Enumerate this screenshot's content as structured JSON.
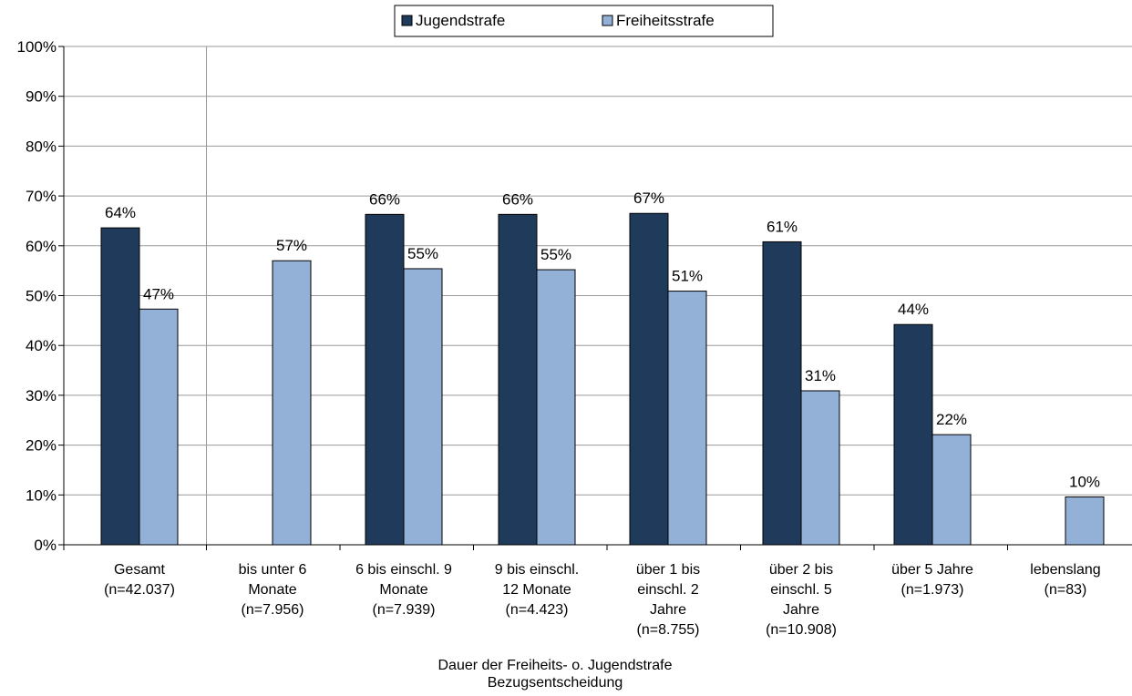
{
  "chart_data": {
    "type": "bar",
    "categories": [
      [
        "Gesamt",
        "(n=42.037)"
      ],
      [
        "bis unter 6",
        "Monate",
        "(n=7.956)"
      ],
      [
        "6 bis einschl. 9",
        "Monate",
        "(n=7.939)"
      ],
      [
        "9 bis einschl.",
        "12 Monate",
        "(n=4.423)"
      ],
      [
        "über 1 bis",
        "einschl. 2",
        "Jahre",
        "(n=8.755)"
      ],
      [
        "über 2 bis",
        "einschl. 5",
        "Jahre",
        "(n=10.908)"
      ],
      [
        "über 5 Jahre",
        "(n=1.973)"
      ],
      [
        "lebenslang",
        "(n=83)"
      ]
    ],
    "series": [
      {
        "name": "Jugendstrafe",
        "color": "#1f3a5a",
        "values": [
          63.6,
          null,
          66.3,
          66.3,
          66.5,
          60.8,
          44.2,
          null
        ],
        "labels": [
          "64%",
          "",
          "66%",
          "66%",
          "67%",
          "61%",
          "44%",
          ""
        ]
      },
      {
        "name": "Freiheitsstrafe",
        "color": "#93b1d6",
        "values": [
          47.3,
          57.0,
          55.4,
          55.2,
          50.9,
          30.9,
          22.1,
          9.6
        ],
        "labels": [
          "47%",
          "57%",
          "55%",
          "55%",
          "51%",
          "31%",
          "22%",
          "10%"
        ]
      }
    ],
    "xlabel": [
      "Dauer der  Freiheits- o. Jugendstrafe",
      "Bezugsentscheidung"
    ],
    "ylim": [
      0,
      100
    ],
    "yticks": [
      "0%",
      "10%",
      "20%",
      "30%",
      "40%",
      "50%",
      "60%",
      "70%",
      "80%",
      "90%",
      "100%"
    ],
    "grid": true,
    "legend_position": "top-center"
  }
}
